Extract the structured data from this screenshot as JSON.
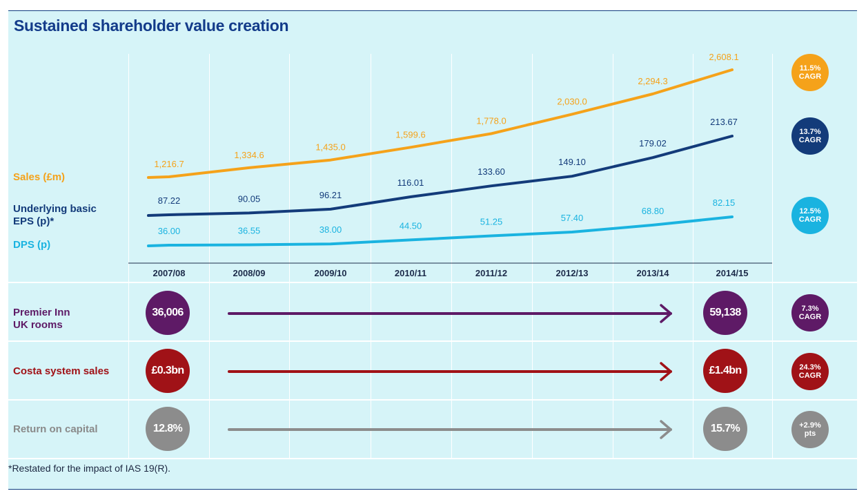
{
  "title": "Sustained shareholder value creation",
  "footnote": "*Restated for the impact of IAS 19(R).",
  "chart_data": {
    "type": "line",
    "categories": [
      "2007/08",
      "2008/09",
      "2009/10",
      "2010/11",
      "2011/12",
      "2012/13",
      "2013/14",
      "2014/15"
    ],
    "series": [
      {
        "name": "Sales (£m)",
        "label_lines": [
          "Sales (£m)"
        ],
        "color": "#f5a21a",
        "cagr": [
          "11.5%",
          "CAGR"
        ],
        "labels": [
          "1,216.7",
          "1,334.6",
          "1,435.0",
          "1,599.6",
          "1,778.0",
          "2,030.0",
          "2,294.3",
          "2,608.1"
        ],
        "values": [
          1216.7,
          1334.6,
          1435.0,
          1599.6,
          1778.0,
          2030.0,
          2294.3,
          2608.1
        ]
      },
      {
        "name": "Underlying basic EPS (p)*",
        "label_lines": [
          "Underlying basic",
          "EPS (p)*"
        ],
        "color": "#133b7a",
        "cagr": [
          "13.7%",
          "CAGR"
        ],
        "labels": [
          "87.22",
          "90.05",
          "96.21",
          "116.01",
          "133.60",
          "149.10",
          "179.02",
          "213.67"
        ],
        "values": [
          87.22,
          90.05,
          96.21,
          116.01,
          133.6,
          149.1,
          179.02,
          213.67
        ]
      },
      {
        "name": "DPS (p)",
        "label_lines": [
          "DPS (p)"
        ],
        "color": "#1ab3e0",
        "cagr": [
          "12.5%",
          "CAGR"
        ],
        "labels": [
          "36.00",
          "36.55",
          "38.00",
          "44.50",
          "51.25",
          "57.40",
          "68.80",
          "82.15"
        ],
        "values": [
          36.0,
          36.55,
          38.0,
          44.5,
          51.25,
          57.4,
          68.8,
          82.15
        ]
      }
    ]
  },
  "rows": [
    {
      "label_lines": [
        "Premier Inn",
        "UK rooms"
      ],
      "start": "36,006",
      "end": "59,138",
      "badge": [
        "7.3%",
        "CAGR"
      ],
      "color": "#5e1a66",
      "label_color": "#5e1a66"
    },
    {
      "label_lines": [
        "Costa system sales"
      ],
      "start": "£0.3bn",
      "end": "£1.4bn",
      "badge": [
        "24.3%",
        "CAGR"
      ],
      "color": "#a01217",
      "label_color": "#a01217"
    },
    {
      "label_lines": [
        "Return on capital"
      ],
      "start": "12.8%",
      "end": "15.7%",
      "badge": [
        "+2.9%",
        "pts"
      ],
      "color": "#8c8c8c",
      "label_color": "#8a8a8a"
    }
  ]
}
